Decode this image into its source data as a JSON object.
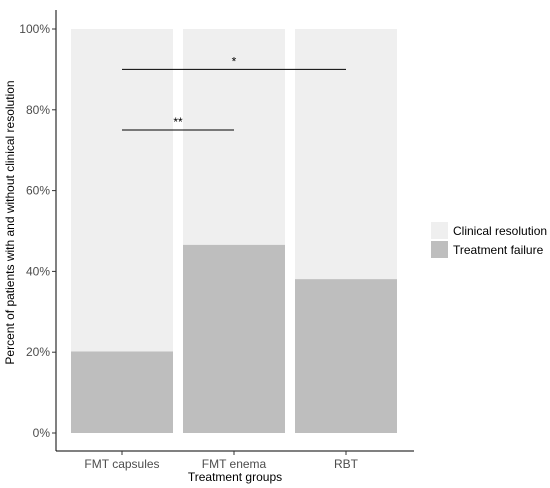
{
  "chart_data": {
    "type": "bar",
    "stacked": true,
    "xlabel": "Treatment groups",
    "ylabel": "Percent of patients with and without clinical resolution",
    "ylim": [
      0,
      100
    ],
    "y_ticks": [
      0,
      20,
      40,
      60,
      80,
      100
    ],
    "y_tick_labels": [
      "0%",
      "20%",
      "40%",
      "60%",
      "80%",
      "100%"
    ],
    "categories": [
      "FMT capsules",
      "FMT enema",
      "RBT"
    ],
    "series": [
      {
        "name": "Treatment failure",
        "values": [
          20.2,
          46.6,
          38.1
        ],
        "color": "#bebebe"
      },
      {
        "name": "Clinical resolution",
        "values": [
          79.8,
          53.4,
          61.9
        ],
        "color": "#efefef"
      }
    ],
    "legend": {
      "placement": "right",
      "entries": [
        "Clinical resolution",
        "Treatment failure"
      ],
      "colors": [
        "#efefef",
        "#bebebe"
      ]
    },
    "grid": false,
    "annotations": [
      {
        "label": "*",
        "from": "FMT capsules",
        "to": "RBT",
        "y": 90
      },
      {
        "label": "**",
        "from": "FMT capsules",
        "to": "FMT enema",
        "y": 75
      }
    ]
  }
}
